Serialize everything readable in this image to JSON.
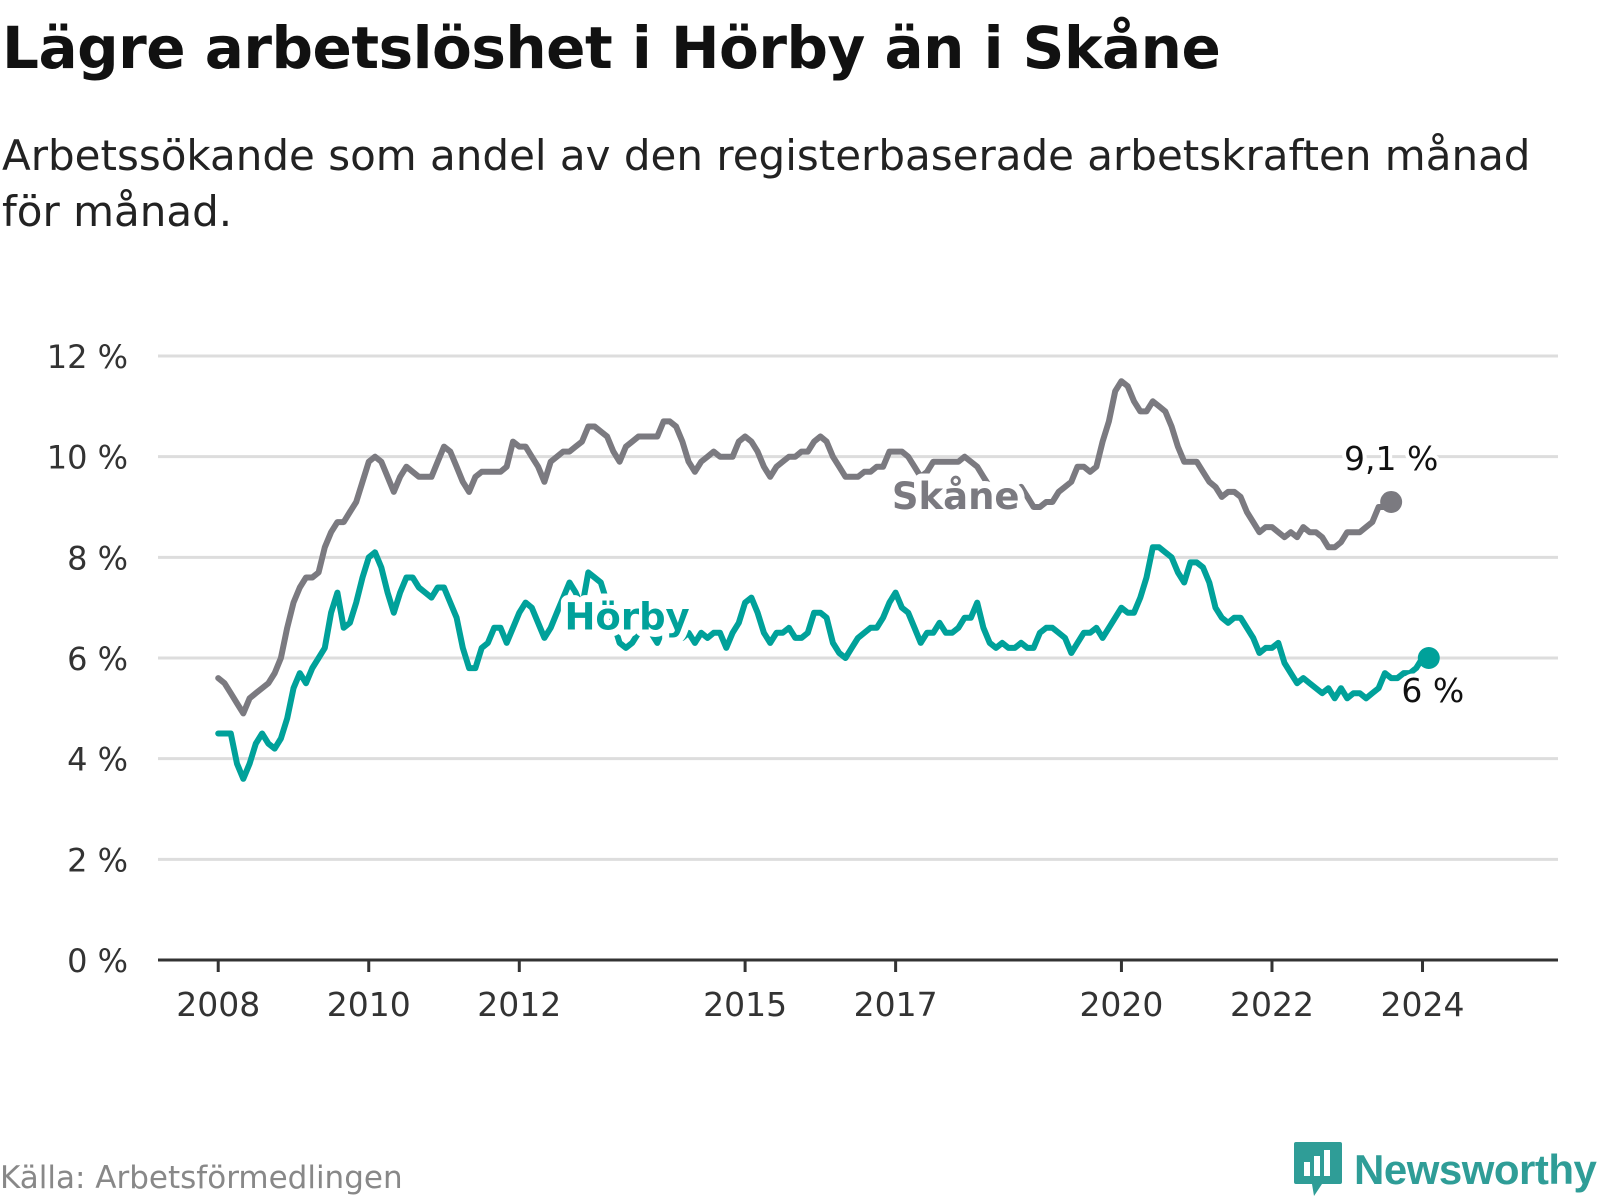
{
  "header": {
    "title": "Lägre arbetslöshet i Hörby än i Skåne",
    "subtitle": "Arbetssökande som andel av den registerbaserade arbetskraften månad för månad."
  },
  "footer": {
    "source": "Källa: Arbetsförmedlingen",
    "brand": "Newsworthy",
    "brand_icon": "newsworthy-logo-icon"
  },
  "colors": {
    "skane": "#7b7a80",
    "horby": "#00a19a",
    "grid": "#dddddd",
    "axis": "#333333",
    "brand": "#2f9d97"
  },
  "chart_data": {
    "type": "line",
    "x_start": 2008.0,
    "x_step": 0.0833333,
    "xlim": [
      2007.2,
      2025.8
    ],
    "ylim": [
      0,
      12
    ],
    "y_ticks": [
      {
        "value": 0,
        "label": "0 %"
      },
      {
        "value": 2,
        "label": "2 %"
      },
      {
        "value": 4,
        "label": "4 %"
      },
      {
        "value": 6,
        "label": "6 %"
      },
      {
        "value": 8,
        "label": "8 %"
      },
      {
        "value": 10,
        "label": "10 %"
      },
      {
        "value": 12,
        "label": "12 %"
      }
    ],
    "x_ticks": [
      {
        "value": 2008,
        "label": "2008"
      },
      {
        "value": 2010,
        "label": "2010"
      },
      {
        "value": 2012,
        "label": "2012"
      },
      {
        "value": 2015,
        "label": "2015"
      },
      {
        "value": 2017,
        "label": "2017"
      },
      {
        "value": 2020,
        "label": "2020"
      },
      {
        "value": 2022,
        "label": "2022"
      },
      {
        "value": 2024,
        "label": "2024"
      }
    ],
    "series": [
      {
        "name": "Skåne",
        "label_x": 2016.95,
        "label_y": 9.2,
        "end_label": "9,1 %",
        "values": [
          5.6,
          5.5,
          5.3,
          5.1,
          4.9,
          5.2,
          5.3,
          5.4,
          5.5,
          5.7,
          6.0,
          6.6,
          7.1,
          7.4,
          7.6,
          7.6,
          7.7,
          8.2,
          8.5,
          8.7,
          8.7,
          8.9,
          9.1,
          9.5,
          9.9,
          10.0,
          9.9,
          9.6,
          9.3,
          9.6,
          9.8,
          9.7,
          9.6,
          9.6,
          9.6,
          9.9,
          10.2,
          10.1,
          9.8,
          9.5,
          9.3,
          9.6,
          9.7,
          9.7,
          9.7,
          9.7,
          9.8,
          10.3,
          10.2,
          10.2,
          10.0,
          9.8,
          9.5,
          9.9,
          10.0,
          10.1,
          10.1,
          10.2,
          10.3,
          10.6,
          10.6,
          10.5,
          10.4,
          10.1,
          9.9,
          10.2,
          10.3,
          10.4,
          10.4,
          10.4,
          10.4,
          10.7,
          10.7,
          10.6,
          10.3,
          9.9,
          9.7,
          9.9,
          10.0,
          10.1,
          10.0,
          10.0,
          10.0,
          10.3,
          10.4,
          10.3,
          10.1,
          9.8,
          9.6,
          9.8,
          9.9,
          10.0,
          10.0,
          10.1,
          10.1,
          10.3,
          10.4,
          10.3,
          10.0,
          9.8,
          9.6,
          9.6,
          9.6,
          9.7,
          9.7,
          9.8,
          9.8,
          10.1,
          10.1,
          10.1,
          10.0,
          9.8,
          9.6,
          9.7,
          9.9,
          9.9,
          9.9,
          9.9,
          9.9,
          10.0,
          9.9,
          9.8,
          9.6,
          9.4,
          9.2,
          9.2,
          9.3,
          9.3,
          9.4,
          9.2,
          9.0,
          9.0,
          9.1,
          9.1,
          9.3,
          9.4,
          9.5,
          9.8,
          9.8,
          9.7,
          9.8,
          10.3,
          10.7,
          11.3,
          11.5,
          11.4,
          11.1,
          10.9,
          10.9,
          11.1,
          11.0,
          10.9,
          10.6,
          10.2,
          9.9,
          9.9,
          9.9,
          9.7,
          9.5,
          9.4,
          9.2,
          9.3,
          9.3,
          9.2,
          8.9,
          8.7,
          8.5,
          8.6,
          8.6,
          8.5,
          8.4,
          8.5,
          8.4,
          8.6,
          8.5,
          8.5,
          8.4,
          8.2,
          8.2,
          8.3,
          8.5,
          8.5,
          8.5,
          8.6,
          8.7,
          9.0,
          9.0,
          9.1
        ]
      },
      {
        "name": "Hörby",
        "label_x": 2012.6,
        "label_y": 6.8,
        "end_label": "6 %",
        "values": [
          4.5,
          4.5,
          4.5,
          3.9,
          3.6,
          3.9,
          4.3,
          4.5,
          4.3,
          4.2,
          4.4,
          4.8,
          5.4,
          5.7,
          5.5,
          5.8,
          6.0,
          6.2,
          6.9,
          7.3,
          6.6,
          6.7,
          7.1,
          7.6,
          8.0,
          8.1,
          7.8,
          7.3,
          6.9,
          7.3,
          7.6,
          7.6,
          7.4,
          7.3,
          7.2,
          7.4,
          7.4,
          7.1,
          6.8,
          6.2,
          5.8,
          5.8,
          6.2,
          6.3,
          6.6,
          6.6,
          6.3,
          6.6,
          6.9,
          7.1,
          7.0,
          6.7,
          6.4,
          6.6,
          6.9,
          7.2,
          7.5,
          7.3,
          7.0,
          7.7,
          7.6,
          7.5,
          7.1,
          6.7,
          6.3,
          6.2,
          6.3,
          6.5,
          6.6,
          6.5,
          6.3,
          6.6,
          6.7,
          6.6,
          6.4,
          6.5,
          6.3,
          6.5,
          6.4,
          6.5,
          6.5,
          6.2,
          6.5,
          6.7,
          7.1,
          7.2,
          6.9,
          6.5,
          6.3,
          6.5,
          6.5,
          6.6,
          6.4,
          6.4,
          6.5,
          6.9,
          6.9,
          6.8,
          6.3,
          6.1,
          6.0,
          6.2,
          6.4,
          6.5,
          6.6,
          6.6,
          6.8,
          7.1,
          7.3,
          7.0,
          6.9,
          6.6,
          6.3,
          6.5,
          6.5,
          6.7,
          6.5,
          6.5,
          6.6,
          6.8,
          6.8,
          7.1,
          6.6,
          6.3,
          6.2,
          6.3,
          6.2,
          6.2,
          6.3,
          6.2,
          6.2,
          6.5,
          6.6,
          6.6,
          6.5,
          6.4,
          6.1,
          6.3,
          6.5,
          6.5,
          6.6,
          6.4,
          6.6,
          6.8,
          7.0,
          6.9,
          6.9,
          7.2,
          7.6,
          8.2,
          8.2,
          8.1,
          8.0,
          7.7,
          7.5,
          7.9,
          7.9,
          7.8,
          7.5,
          7.0,
          6.8,
          6.7,
          6.8,
          6.8,
          6.6,
          6.4,
          6.1,
          6.2,
          6.2,
          6.3,
          5.9,
          5.7,
          5.5,
          5.6,
          5.5,
          5.4,
          5.3,
          5.4,
          5.2,
          5.4,
          5.2,
          5.3,
          5.3,
          5.2,
          5.3,
          5.4,
          5.7,
          5.6,
          5.6,
          5.7,
          5.7,
          5.8,
          6.0,
          6.0
        ]
      }
    ]
  }
}
